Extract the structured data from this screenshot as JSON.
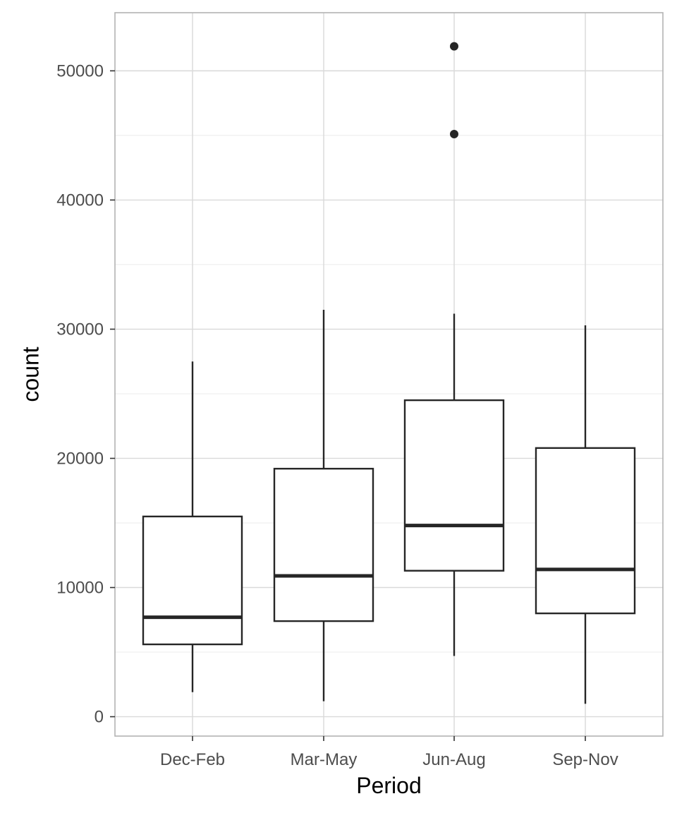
{
  "chart_data": {
    "type": "boxplot",
    "xlabel": "Period",
    "ylabel": "count",
    "ylim": [
      -1500,
      54500
    ],
    "y_ticks": [
      0,
      10000,
      20000,
      30000,
      40000,
      50000
    ],
    "y_tick_labels": [
      "0",
      "10000",
      "20000",
      "30000",
      "40000",
      "50000"
    ],
    "categories": [
      "Dec-Feb",
      "Mar-May",
      "Jun-Aug",
      "Sep-Nov"
    ],
    "boxes": [
      {
        "category": "Dec-Feb",
        "whisker_low": 1900,
        "q1": 5600,
        "median": 7700,
        "q3": 15500,
        "whisker_high": 27500,
        "outliers": []
      },
      {
        "category": "Mar-May",
        "whisker_low": 1200,
        "q1": 7400,
        "median": 10900,
        "q3": 19200,
        "whisker_high": 31500,
        "outliers": []
      },
      {
        "category": "Jun-Aug",
        "whisker_low": 4700,
        "q1": 11300,
        "median": 14800,
        "q3": 24500,
        "whisker_high": 31200,
        "outliers": [
          45100,
          51900
        ]
      },
      {
        "category": "Sep-Nov",
        "whisker_low": 1000,
        "q1": 8000,
        "median": 11400,
        "q3": 20800,
        "whisker_high": 30300,
        "outliers": []
      }
    ],
    "grid": true,
    "colors": {
      "box_line": "#262626",
      "grid": "#d9d9d9",
      "panel_border": "#b3b3b3",
      "tick_text": "#4d4d4d",
      "title_text": "#000000"
    }
  }
}
